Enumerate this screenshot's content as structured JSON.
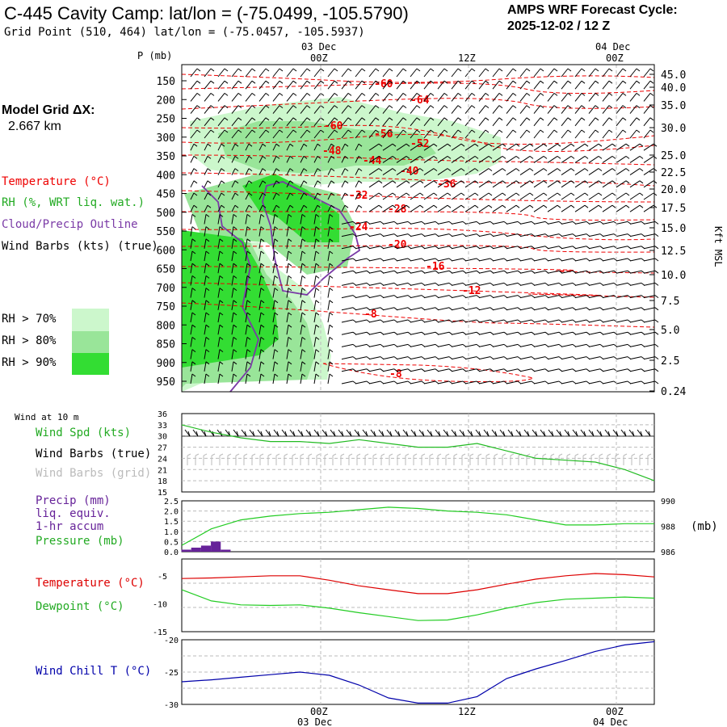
{
  "header": {
    "title": "C-445 Cavity Camp:  lat/lon = (-75.0499, -105.5790)",
    "subtitle": "Grid Point (510, 464) lat/lon = (-75.0457, -105.5937)",
    "cycle_line1": "AMPS WRF Forecast Cycle:",
    "cycle_line2": "2025-12-02 / 12  Z"
  },
  "left_panel": {
    "model_grid_label": "Model Grid ΔX:",
    "model_grid_value": "2.667 km",
    "legend_temperature": "Temperature (°C)",
    "legend_rh": "RH (%, WRT liq. wat.)",
    "legend_cloud": "Cloud/Precip Outline",
    "legend_wind": "Wind Barbs (kts) (true)",
    "rh_70": "RH > 70%",
    "rh_80": "RH > 80%",
    "rh_90": "RH > 90%"
  },
  "colors": {
    "rh70": "#ccf7cc",
    "rh80": "#99e599",
    "rh90": "#33dd33",
    "temp": "#ee0000",
    "cloud": "#7a3aa6",
    "wind_speed": "#22bb22",
    "temp_line": "#dd0000",
    "dew_line": "#22cc22",
    "wind_chill": "#0000aa",
    "precip": "#662299",
    "pressure": "#22cc22"
  },
  "time_axis": {
    "top_dates": [
      "03 Dec",
      "04 Dec"
    ],
    "top_hours": [
      "00Z",
      "12Z",
      "00Z"
    ],
    "bottom_hours": [
      "00Z",
      "12Z",
      "00Z"
    ],
    "bottom_dates": [
      "03 Dec",
      "04 Dec"
    ]
  },
  "sounding_panel": {
    "p_label": "P (mb)",
    "right_label": "Kft MSL",
    "pressure_ticks": [
      "150",
      "200",
      "250",
      "300",
      "350",
      "400",
      "450",
      "500",
      "550",
      "600",
      "650",
      "700",
      "750",
      "800",
      "850",
      "900",
      "950"
    ],
    "height_ticks": [
      "45.0",
      "40.0",
      "35.0",
      "30.0",
      "25.0",
      "22.5",
      "20.0",
      "17.5",
      "15.0",
      "12.5",
      "10.0",
      "7.5",
      "5.0",
      "2.5",
      "0.24"
    ],
    "temp_labels": [
      "-60",
      "-64",
      "-60",
      "-56",
      "-52",
      "-48",
      "-44",
      "-40",
      "-36",
      "-32",
      "-28",
      "-24",
      "-20",
      "-16",
      "-12",
      "-8",
      "-8"
    ]
  },
  "wind_panel": {
    "title": "Wind at 10 m",
    "legend_speed": "Wind Spd (kts)",
    "legend_barbs_true": "Wind Barbs (true)",
    "legend_barbs_grid": "Wind Barbs (grid)",
    "y_ticks": [
      "36",
      "33",
      "30",
      "27",
      "24",
      "21",
      "18",
      "15"
    ]
  },
  "precip_panel": {
    "legend_precip": "Precip (mm)",
    "legend_liq": "liq. equiv.",
    "legend_accum": "1-hr accum",
    "legend_pressure": "Pressure (mb)",
    "left_ticks": [
      "2.5",
      "2.0",
      "1.5",
      "1.0",
      "0.5",
      "0.0"
    ],
    "right_ticks": [
      "990",
      "988",
      "986"
    ],
    "right_unit": "(mb)"
  },
  "temp_panel": {
    "legend_temp": "Temperature (°C)",
    "legend_dew": "Dewpoint (°C)",
    "y_ticks": [
      "-5",
      "-10",
      "-15"
    ]
  },
  "chill_panel": {
    "legend": "Wind Chill T (°C)",
    "y_ticks": [
      "-20",
      "-25",
      "-30"
    ]
  },
  "chart_data": [
    {
      "type": "line",
      "title": "Wind at 10 m",
      "ylabel": "Wind Spd (kts)",
      "ylim": [
        15,
        36
      ],
      "x_hours": [
        0,
        3,
        6,
        9,
        12,
        15,
        18,
        21,
        24,
        27,
        30,
        33,
        36,
        39,
        42,
        45,
        48
      ],
      "values": [
        33,
        31,
        29.5,
        28.5,
        28.5,
        28,
        29,
        28,
        27,
        27,
        28,
        26,
        24,
        23.5,
        23,
        21,
        18
      ]
    },
    {
      "type": "line",
      "title": "Pressure (mb)",
      "ylim": [
        986,
        990
      ],
      "x_hours": [
        0,
        3,
        6,
        9,
        12,
        15,
        18,
        21,
        24,
        27,
        30,
        33,
        36,
        39,
        42,
        45,
        48
      ],
      "values": [
        986.5,
        987.8,
        988.5,
        988.8,
        989,
        989.1,
        989.3,
        989.5,
        989.4,
        989.2,
        989.1,
        988.9,
        988.5,
        988.1,
        988.1,
        988.2,
        988.2
      ]
    },
    {
      "type": "bar",
      "title": "Precip (mm) liq. equiv. 1-hr accum",
      "ylim": [
        0,
        2.5
      ],
      "x_hours": [
        0,
        1,
        2,
        3,
        4,
        5
      ],
      "values": [
        0.1,
        0.2,
        0.3,
        0.5,
        0.1,
        0.0
      ]
    },
    {
      "type": "line",
      "title": "Temperature / Dewpoint (°C)",
      "ylim": [
        -15,
        -2
      ],
      "x_hours": [
        0,
        3,
        6,
        9,
        12,
        15,
        18,
        21,
        24,
        27,
        30,
        33,
        36,
        39,
        42,
        45,
        48
      ],
      "series": [
        {
          "name": "Temperature (°C)",
          "values": [
            -5.5,
            -5.4,
            -5.2,
            -5.0,
            -5.0,
            -5.8,
            -6.8,
            -7.5,
            -8.2,
            -8.2,
            -7.5,
            -6.5,
            -5.6,
            -5.0,
            -4.6,
            -4.8,
            -5.2
          ]
        },
        {
          "name": "Dewpoint (°C)",
          "values": [
            -7.5,
            -9.5,
            -10.2,
            -10.3,
            -10.2,
            -10.8,
            -11.6,
            -12.3,
            -13.0,
            -12.9,
            -12.0,
            -10.8,
            -9.8,
            -9.2,
            -9.0,
            -8.8,
            -9.0
          ]
        }
      ]
    },
    {
      "type": "line",
      "title": "Wind Chill T (°C)",
      "ylim": [
        -30,
        -20
      ],
      "x_hours": [
        0,
        3,
        6,
        9,
        12,
        15,
        18,
        21,
        24,
        27,
        30,
        33,
        36,
        39,
        42,
        45,
        48
      ],
      "values": [
        -26.5,
        -26.2,
        -25.8,
        -25.4,
        -25.0,
        -25.5,
        -27.0,
        -29.0,
        -29.8,
        -29.8,
        -28.8,
        -26.0,
        -24.5,
        -23.2,
        -21.8,
        -20.8,
        -20.3
      ]
    }
  ]
}
